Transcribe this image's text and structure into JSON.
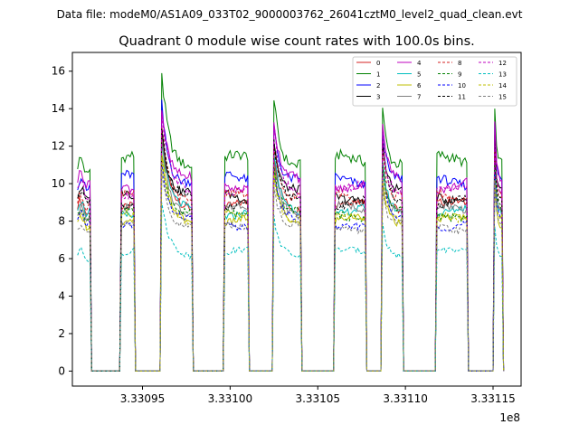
{
  "chart_data": {
    "type": "line",
    "suptitle": "Data file: modeM0/AS1A09_033T02_9000003762_26041cztM0_level2_quad_clean.evt",
    "title": "Quadrant 0 module wise count rates with 100.0s bins.",
    "xlabel": "",
    "ylabel": "",
    "x_offset_label": "1e8",
    "x_scale": 100000000,
    "xlim": [
      333091000,
      333116600
    ],
    "ylim": [
      -0.8,
      17.0
    ],
    "x_ticks": [
      333095000,
      333100000,
      333105000,
      333110000,
      333115000
    ],
    "x_tick_labels": [
      "3.33095",
      "3.33100",
      "3.33105",
      "3.33110",
      "3.33115"
    ],
    "y_ticks": [
      0,
      2,
      4,
      6,
      8,
      10,
      12,
      14,
      16
    ],
    "y_tick_labels": [
      "0",
      "2",
      "4",
      "6",
      "8",
      "10",
      "12",
      "14",
      "16"
    ],
    "bin_seconds": 100,
    "segments": [
      {
        "start": 333091300,
        "end": 333092000
      },
      {
        "start": 333093800,
        "end": 333094500
      },
      {
        "start": 333096100,
        "end": 333097800
      },
      {
        "start": 333099700,
        "end": 333101000
      },
      {
        "start": 333102500,
        "end": 333104000
      },
      {
        "start": 333106000,
        "end": 333107700
      },
      {
        "start": 333108700,
        "end": 333109800
      },
      {
        "start": 333111800,
        "end": 333113500
      },
      {
        "start": 333115100,
        "end": 333115500
      }
    ],
    "segment_peak_factor": [
      1.04,
      1.0,
      1.42,
      1.0,
      1.32,
      1.0,
      1.3,
      1.0,
      1.28
    ],
    "series": [
      {
        "name": "0",
        "color": "#d62020",
        "dash": "solid",
        "level": 8.8
      },
      {
        "name": "1",
        "color": "#008000",
        "dash": "solid",
        "level": 11.2
      },
      {
        "name": "2",
        "color": "#0000ff",
        "dash": "solid",
        "level": 10.2
      },
      {
        "name": "3",
        "color": "#000000",
        "dash": "solid",
        "level": 9.4
      },
      {
        "name": "4",
        "color": "#bf00bf",
        "dash": "solid",
        "level": 10.0
      },
      {
        "name": "5",
        "color": "#00bfbf",
        "dash": "solid",
        "level": 8.5
      },
      {
        "name": "6",
        "color": "#bfbf00",
        "dash": "solid",
        "level": 8.0
      },
      {
        "name": "7",
        "color": "#808080",
        "dash": "solid",
        "level": 8.6
      },
      {
        "name": "8",
        "color": "#d62020",
        "dash": "dashed",
        "level": 9.3
      },
      {
        "name": "9",
        "color": "#008000",
        "dash": "dashed",
        "level": 8.4
      },
      {
        "name": "10",
        "color": "#0000ff",
        "dash": "dashed",
        "level": 7.9
      },
      {
        "name": "11",
        "color": "#000000",
        "dash": "dashed",
        "level": 9.0
      },
      {
        "name": "12",
        "color": "#bf00bf",
        "dash": "dashed",
        "level": 9.6
      },
      {
        "name": "13",
        "color": "#00bfbf",
        "dash": "dashed",
        "level": 6.3
      },
      {
        "name": "14",
        "color": "#bfbf00",
        "dash": "dashed",
        "level": 8.2
      },
      {
        "name": "15",
        "color": "#808080",
        "dash": "dashed",
        "level": 7.7
      }
    ],
    "legend": {
      "location": "upper right",
      "columns": 4
    }
  }
}
